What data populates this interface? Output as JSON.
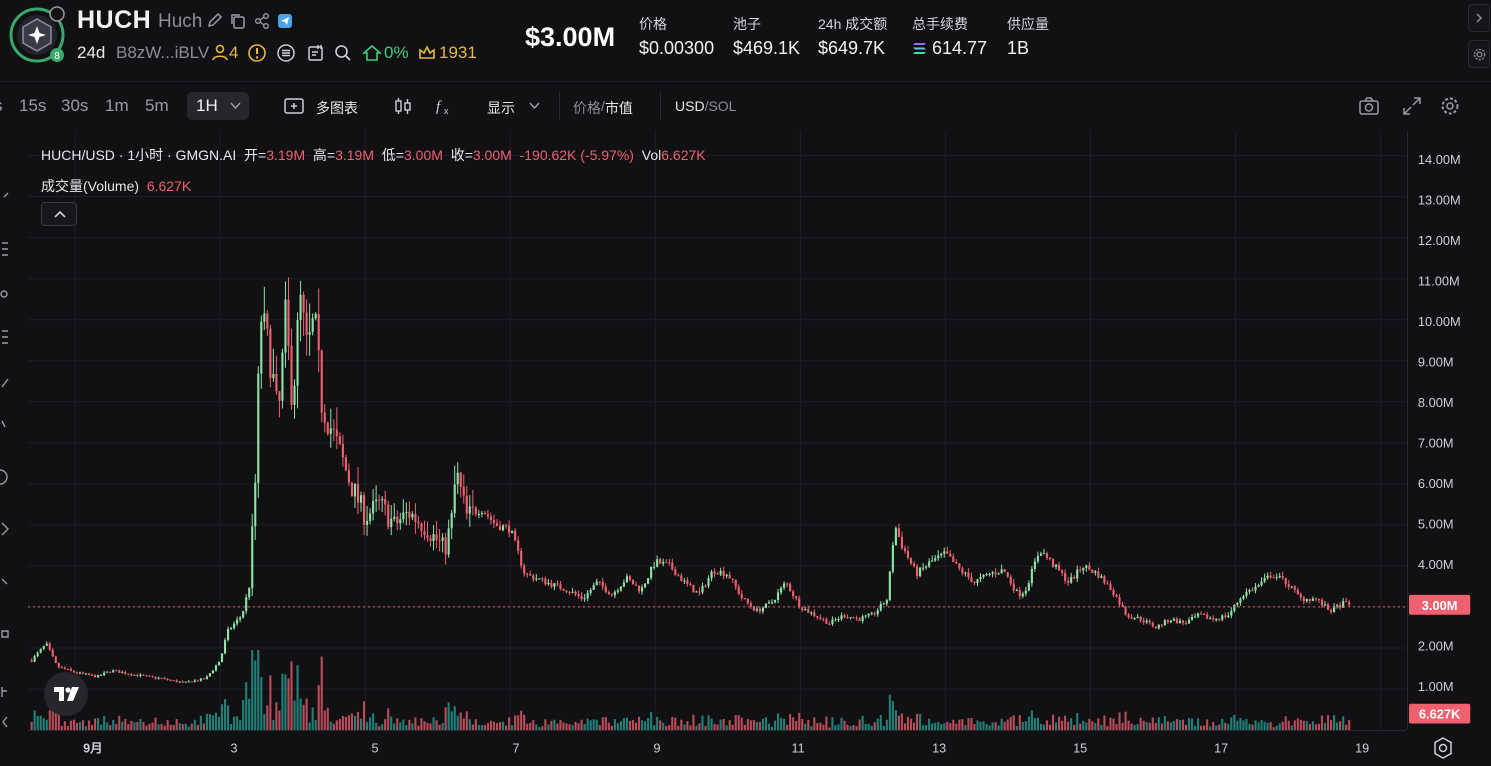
{
  "header": {
    "token_symbol": "HUCH",
    "token_name": "Huch",
    "logo_badge": "8",
    "age": "24d",
    "address": "B8zW...iBLV",
    "holders": "4",
    "top10_pct": "0%",
    "kol_count": "1931",
    "market_cap": "$3.00M",
    "stats": [
      {
        "label": "价格",
        "value": "$0.00300"
      },
      {
        "label": "池子",
        "value": "$469.1K"
      },
      {
        "label": "24h 成交额",
        "value": "$649.7K"
      },
      {
        "label": "总手续费",
        "value": "614.77"
      },
      {
        "label": "供应量",
        "value": "1B"
      }
    ]
  },
  "toolbar": {
    "timeframes": [
      "15s",
      "30s",
      "1m",
      "5m"
    ],
    "active_timeframe": "1H",
    "multi_chart": "多图表",
    "display": "显示",
    "price_label": "价格",
    "mcap_label": "市值",
    "usd_label": "USD",
    "sol_label": "SOL"
  },
  "legend": {
    "title": "HUCH/USD · 1小时 · GMGN.AI",
    "open_label": "开",
    "open": "3.19M",
    "high_label": "高",
    "high": "3.19M",
    "low_label": "低",
    "low": "3.00M",
    "close_label": "收",
    "close": "3.00M",
    "change": "-190.62K (-5.97%)",
    "vol_label": "Vol",
    "vol": "6.627K",
    "volume_label": "成交量(Volume)",
    "volume_value": "6.627K"
  },
  "colors": {
    "up": "#26a69a",
    "up_light": "#8fe3a8",
    "down": "#f0606f",
    "background": "#111114",
    "grid": "#1e1e23",
    "price_line": "#f0606f"
  },
  "chart_data": {
    "type": "candlestick",
    "title": "HUCH/USD · 1小时 · GMGN.AI",
    "y_unit": "M",
    "ylim": [
      0.0,
      14.6
    ],
    "y_ticks": [
      "14.00M",
      "13.00M",
      "12.00M",
      "11.00M",
      "10.00M",
      "9.00M",
      "8.00M",
      "7.00M",
      "6.00M",
      "5.00M",
      "4.00M",
      "3.00M",
      "2.00M",
      "1.00M"
    ],
    "x_ticks": [
      "9月",
      "3",
      "5",
      "7",
      "9",
      "11",
      "13",
      "15",
      "17",
      "19"
    ],
    "x_tick_days": [
      1,
      3,
      5,
      7,
      9,
      11,
      13,
      15,
      17,
      19
    ],
    "x_range_days": [
      0.35,
      19.35
    ],
    "last_price_label": "3.00M",
    "last_price": 3.0,
    "volume_label": "6.627K",
    "grid": true,
    "close_path": [
      [
        0.4,
        1.7
      ],
      [
        0.6,
        2.1
      ],
      [
        0.75,
        1.55
      ],
      [
        1.0,
        1.4
      ],
      [
        1.3,
        1.3
      ],
      [
        1.5,
        1.45
      ],
      [
        1.8,
        1.35
      ],
      [
        2.2,
        1.25
      ],
      [
        2.5,
        1.15
      ],
      [
        2.8,
        1.25
      ],
      [
        3.0,
        1.7
      ],
      [
        3.1,
        2.4
      ],
      [
        3.3,
        2.8
      ],
      [
        3.4,
        3.5
      ],
      [
        3.5,
        6.5
      ],
      [
        3.55,
        10.2
      ],
      [
        3.7,
        9.0
      ],
      [
        3.8,
        7.5
      ],
      [
        3.9,
        10.0
      ],
      [
        4.0,
        8.0
      ],
      [
        4.1,
        10.5
      ],
      [
        4.2,
        9.2
      ],
      [
        4.3,
        10.0
      ],
      [
        4.4,
        8.0
      ],
      [
        4.6,
        7.0
      ],
      [
        4.8,
        6.0
      ],
      [
        5.0,
        5.2
      ],
      [
        5.2,
        5.5
      ],
      [
        5.4,
        5.0
      ],
      [
        5.6,
        5.3
      ],
      [
        5.8,
        5.0
      ],
      [
        6.0,
        4.6
      ],
      [
        6.1,
        4.4
      ],
      [
        6.2,
        5.2
      ],
      [
        6.25,
        6.3
      ],
      [
        6.4,
        5.2
      ],
      [
        6.6,
        5.4
      ],
      [
        6.8,
        5.0
      ],
      [
        7.0,
        4.9
      ],
      [
        7.2,
        3.8
      ],
      [
        7.5,
        3.6
      ],
      [
        7.8,
        3.4
      ],
      [
        8.0,
        3.2
      ],
      [
        8.2,
        3.6
      ],
      [
        8.4,
        3.3
      ],
      [
        8.6,
        3.7
      ],
      [
        8.8,
        3.4
      ],
      [
        9.0,
        4.1
      ],
      [
        9.2,
        4.0
      ],
      [
        9.4,
        3.6
      ],
      [
        9.6,
        3.3
      ],
      [
        9.8,
        3.9
      ],
      [
        10.0,
        3.8
      ],
      [
        10.2,
        3.2
      ],
      [
        10.4,
        2.9
      ],
      [
        10.6,
        3.1
      ],
      [
        10.8,
        3.6
      ],
      [
        11.0,
        3.0
      ],
      [
        11.2,
        2.8
      ],
      [
        11.4,
        2.6
      ],
      [
        11.6,
        2.8
      ],
      [
        11.8,
        2.7
      ],
      [
        12.0,
        2.8
      ],
      [
        12.2,
        3.2
      ],
      [
        12.3,
        5.0
      ],
      [
        12.4,
        4.5
      ],
      [
        12.6,
        3.8
      ],
      [
        12.8,
        4.1
      ],
      [
        13.0,
        4.3
      ],
      [
        13.2,
        3.9
      ],
      [
        13.4,
        3.6
      ],
      [
        13.6,
        3.8
      ],
      [
        13.8,
        3.9
      ],
      [
        14.0,
        3.3
      ],
      [
        14.1,
        3.4
      ],
      [
        14.3,
        4.4
      ],
      [
        14.5,
        4.0
      ],
      [
        14.7,
        3.6
      ],
      [
        14.9,
        4.0
      ],
      [
        15.1,
        3.8
      ],
      [
        15.3,
        3.4
      ],
      [
        15.5,
        2.8
      ],
      [
        15.7,
        2.7
      ],
      [
        15.9,
        2.5
      ],
      [
        16.1,
        2.7
      ],
      [
        16.3,
        2.6
      ],
      [
        16.5,
        2.8
      ],
      [
        16.7,
        2.7
      ],
      [
        16.9,
        2.8
      ],
      [
        17.1,
        3.3
      ],
      [
        17.3,
        3.5
      ],
      [
        17.5,
        3.8
      ],
      [
        17.7,
        3.6
      ],
      [
        17.9,
        3.2
      ],
      [
        18.1,
        3.2
      ],
      [
        18.3,
        2.9
      ],
      [
        18.5,
        3.1
      ],
      [
        18.6,
        3.0
      ]
    ]
  }
}
